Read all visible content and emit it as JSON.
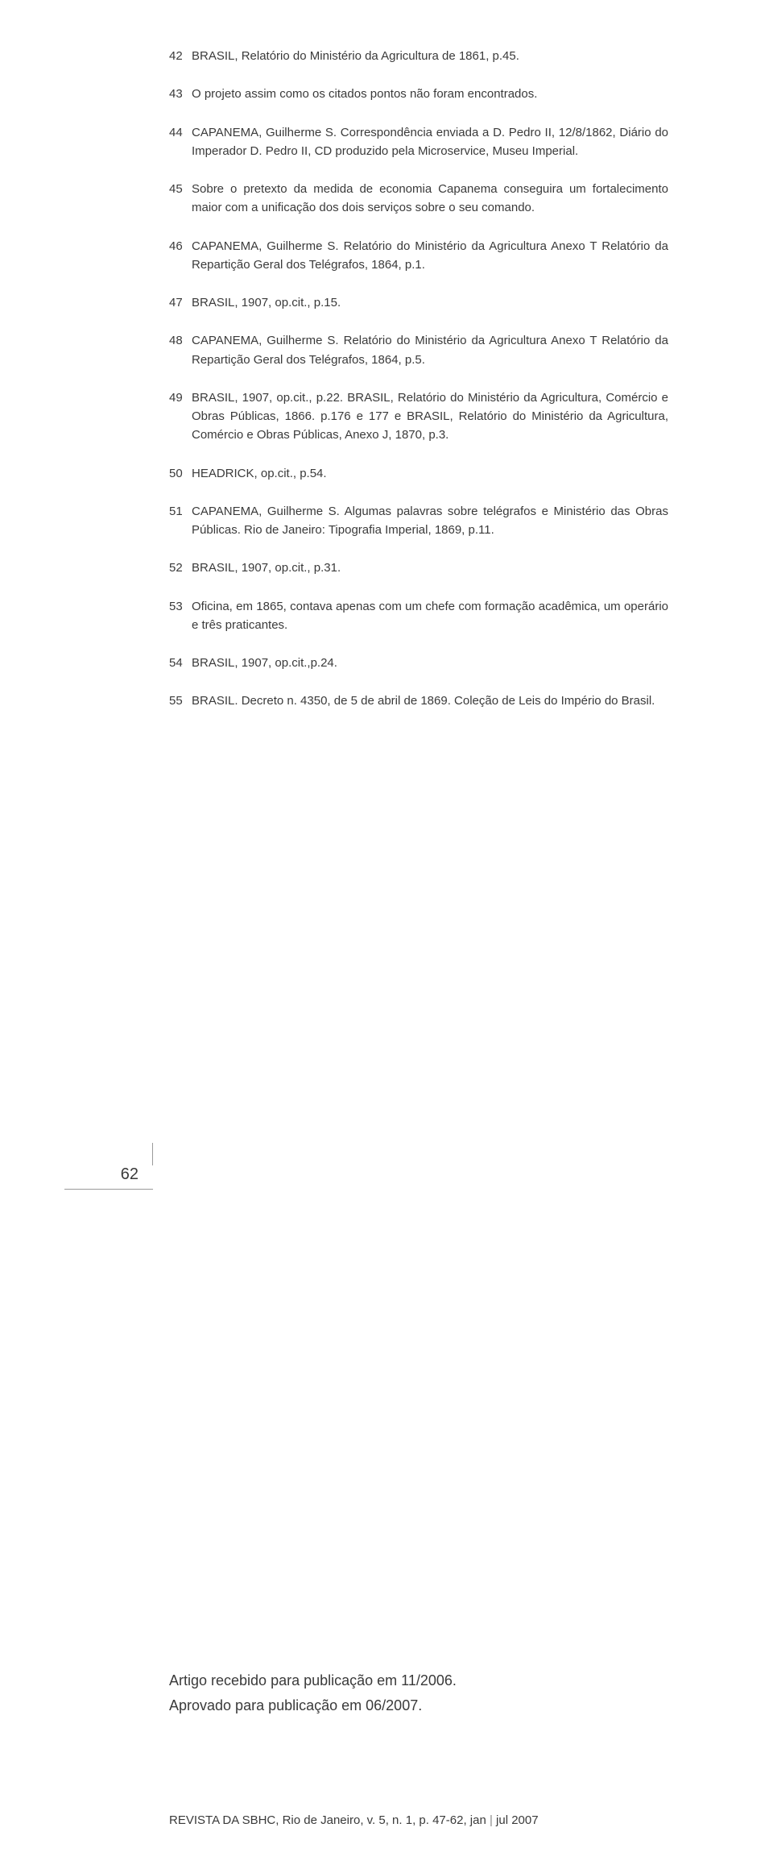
{
  "notes": [
    {
      "n": "42",
      "text": "BRASIL, Relatório do Ministério da Agricultura de 1861, p.45."
    },
    {
      "n": "43",
      "text": "O projeto assim como os citados pontos não foram encontrados."
    },
    {
      "n": "44",
      "text": "CAPANEMA, Guilherme S. Correspondência enviada a D. Pedro II, 12/8/1862, Diário do Imperador D. Pedro II, CD produzido pela Microservice, Museu Imperial."
    },
    {
      "n": "45",
      "text": "Sobre o pretexto da medida de economia Capanema conseguira um fortalecimento maior com a unificação dos dois serviços sobre o seu comando."
    },
    {
      "n": "46",
      "text": "CAPANEMA, Guilherme S. Relatório do Ministério da Agricultura Anexo T Relatório da Repartição Geral dos Telégrafos, 1864, p.1."
    },
    {
      "n": "47",
      "text": "BRASIL, 1907, op.cit., p.15."
    },
    {
      "n": "48",
      "text": "CAPANEMA, Guilherme S. Relatório do Ministério da Agricultura Anexo T Relatório da Repartição Geral dos Telégrafos, 1864, p.5."
    },
    {
      "n": "49",
      "text": "BRASIL, 1907, op.cit., p.22. BRASIL, Relatório do Ministério da Agricultura, Comércio e Obras Públicas, 1866. p.176 e 177 e BRASIL, Relatório do Ministério da Agricultura, Comércio e Obras Públicas, Anexo J, 1870, p.3."
    },
    {
      "n": "50",
      "text": "HEADRICK, op.cit., p.54."
    },
    {
      "n": "51",
      "text": "CAPANEMA, Guilherme S. Algumas palavras sobre telégrafos e Ministério das Obras Públicas. Rio de Janeiro: Tipografia Imperial, 1869, p.11."
    },
    {
      "n": "52",
      "text": "BRASIL, 1907, op.cit., p.31."
    },
    {
      "n": "53",
      "text": "Oficina, em 1865, contava apenas com um chefe com formação acadêmica, um operário e três praticantes."
    },
    {
      "n": "54",
      "text": "BRASIL, 1907, op.cit.,p.24."
    },
    {
      "n": "55",
      "text": "BRASIL. Decreto n. 4350, de 5 de abril de 1869. Coleção de Leis do Império do Brasil."
    }
  ],
  "page_number": "62",
  "article_info": {
    "received": "Artigo recebido para publicação em 11/2006.",
    "approved": "Aprovado para publicação em 06/2007."
  },
  "footer": {
    "journal": "REVISTA DA SBHC, Rio de Janeiro, v. 5, n. 1, p. 47-62, jan ",
    "pipe": "|",
    "tail": " jul 2007"
  }
}
